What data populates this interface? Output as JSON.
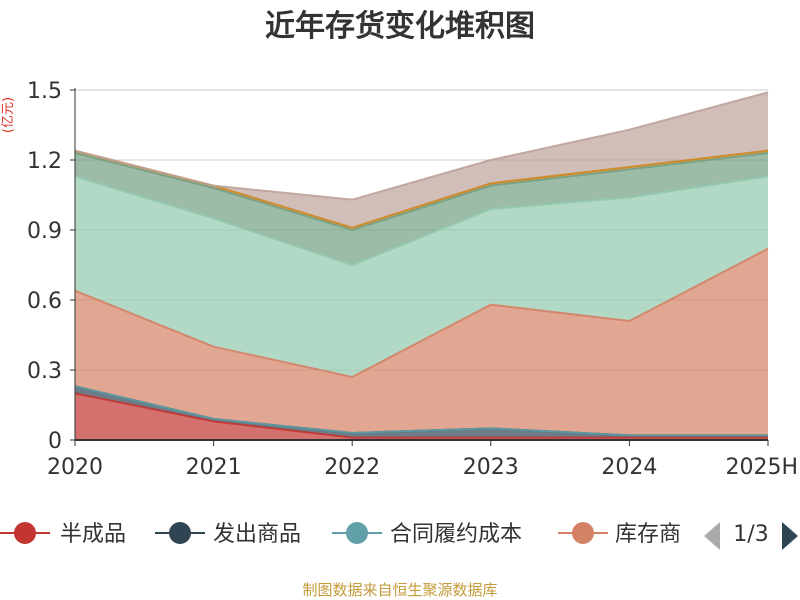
{
  "title": "近年存货变化堆积图",
  "unit": "(亿元)",
  "source": "制图数据来自恒生聚源数据库",
  "pager": {
    "text": "1/3"
  },
  "legend_visible_texts": [
    "半成品",
    "发出商品",
    "合同履约成本",
    "库存商"
  ],
  "chart_data": {
    "type": "area",
    "stacked": true,
    "title": "近年存货变化堆积图",
    "ylabel": "(亿元)",
    "xlabel": "",
    "x": [
      "2020",
      "2021",
      "2022",
      "2023",
      "2024",
      "2025H"
    ],
    "ylim": [
      0,
      1.5
    ],
    "yticks": [
      "0",
      "0.3",
      "0.6",
      "0.9",
      "1.2",
      "1.5"
    ],
    "grid": true,
    "legend": "bottom",
    "series": [
      {
        "name": "半成品",
        "color": "#c23531",
        "values": [
          0.2,
          0.08,
          0.01,
          0.01,
          0.01,
          0.01
        ]
      },
      {
        "name": "发出商品",
        "color": "#2f4554",
        "values": [
          0.03,
          0.01,
          0.02,
          0.04,
          0.01,
          0.01
        ]
      },
      {
        "name": "合同履约成本",
        "color": "#61a0a8",
        "values": [
          0.0,
          0.0,
          0.0,
          0.0,
          0.0,
          0.0
        ]
      },
      {
        "name": "库存商品",
        "color": "#d48265",
        "values": [
          0.41,
          0.31,
          0.24,
          0.53,
          0.49,
          0.8
        ]
      },
      {
        "name": "",
        "color": "#91c7ae",
        "values": [
          0.49,
          0.55,
          0.48,
          0.41,
          0.53,
          0.31
        ]
      },
      {
        "name": "",
        "color": "#749f83",
        "values": [
          0.1,
          0.13,
          0.15,
          0.1,
          0.12,
          0.1
        ]
      },
      {
        "name": "",
        "color": "#ca8622",
        "values": [
          0.01,
          0.01,
          0.01,
          0.01,
          0.01,
          0.01
        ]
      },
      {
        "name": "",
        "color": "#bda29a",
        "values": [
          0.0,
          0.0,
          0.12,
          0.1,
          0.16,
          0.25
        ]
      }
    ]
  }
}
